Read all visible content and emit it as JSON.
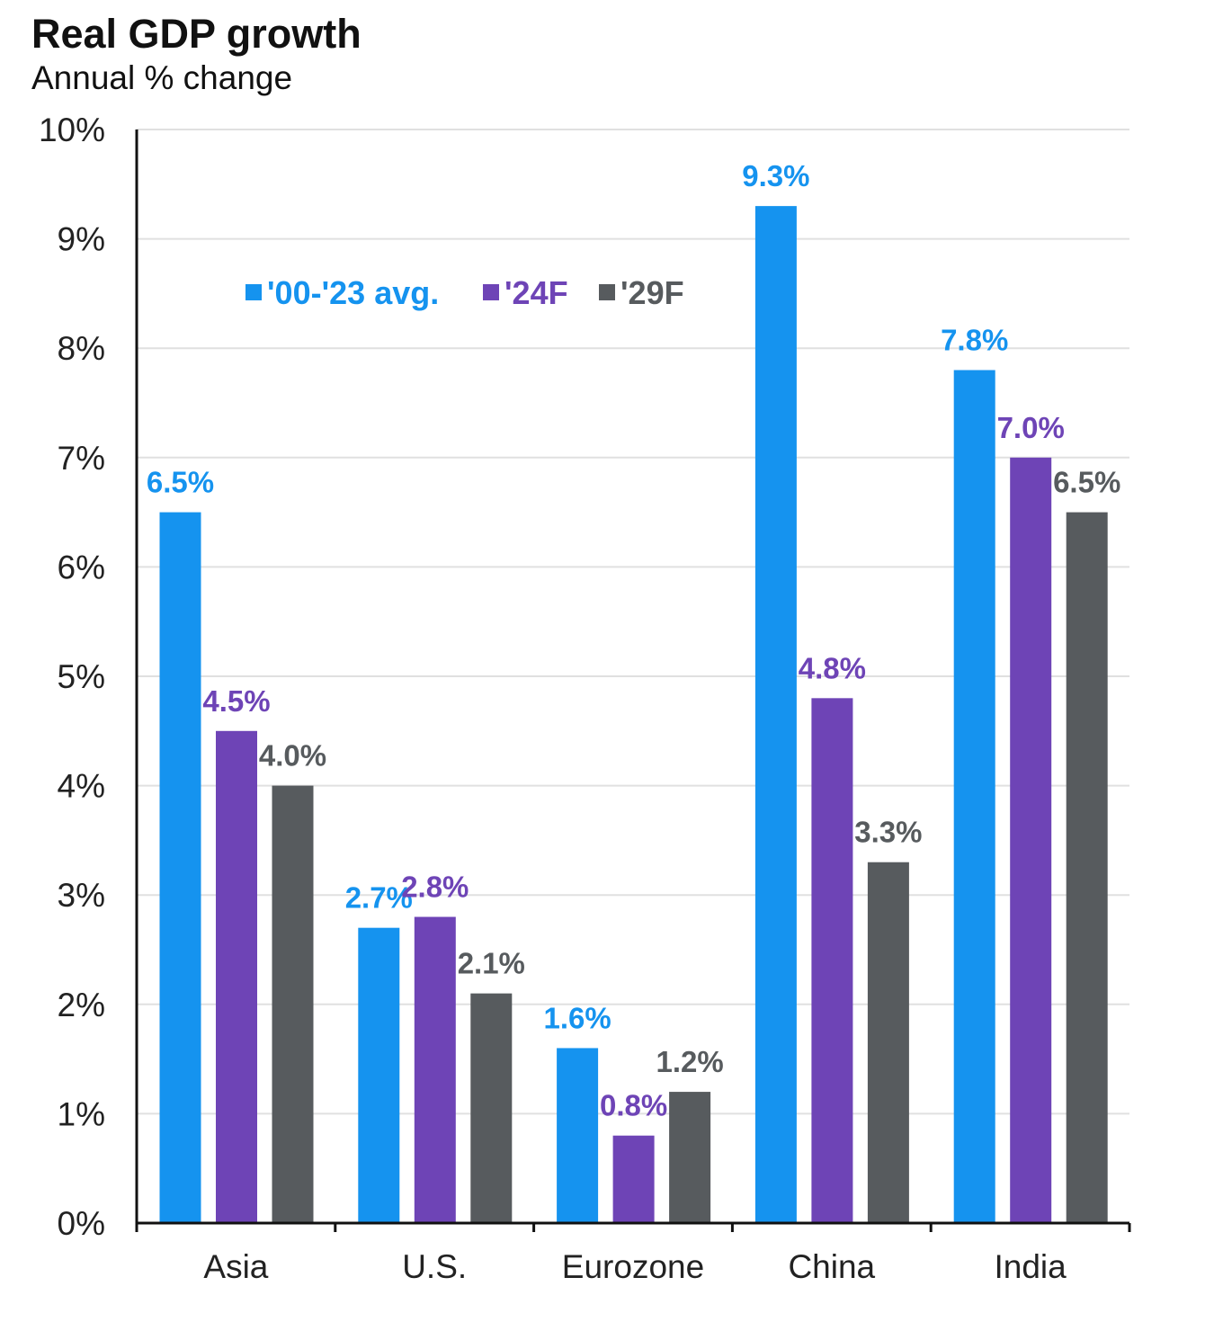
{
  "header": {
    "title": "Real GDP growth",
    "subtitle": "Annual % change"
  },
  "chart_data": {
    "type": "bar",
    "title": "Real GDP growth",
    "subtitle": "Annual % change",
    "categories": [
      "Asia",
      "U.S.",
      "Eurozone",
      "China",
      "India"
    ],
    "series": [
      {
        "name": "'00-'23 avg.",
        "color": "#1593ef",
        "values": [
          6.5,
          2.7,
          1.6,
          9.3,
          7.8
        ],
        "labels": [
          "6.5%",
          "2.7%",
          "1.6%",
          "9.3%",
          "7.8%"
        ]
      },
      {
        "name": "'24F",
        "color": "#6e44b6",
        "values": [
          4.5,
          2.8,
          0.8,
          4.8,
          7.0
        ],
        "labels": [
          "4.5%",
          "2.8%",
          "0.8%",
          "4.8%",
          "7.0%"
        ]
      },
      {
        "name": "'29F",
        "color": "#575b5e",
        "values": [
          4.0,
          2.1,
          1.2,
          3.3,
          6.5
        ],
        "labels": [
          "4.0%",
          "2.1%",
          "1.2%",
          "3.3%",
          "6.5%"
        ]
      }
    ],
    "ylim": [
      0,
      10
    ],
    "yticks": [
      "0%",
      "1%",
      "2%",
      "3%",
      "4%",
      "5%",
      "6%",
      "7%",
      "8%",
      "9%",
      "10%"
    ],
    "grid": true,
    "legend": "top-left"
  }
}
